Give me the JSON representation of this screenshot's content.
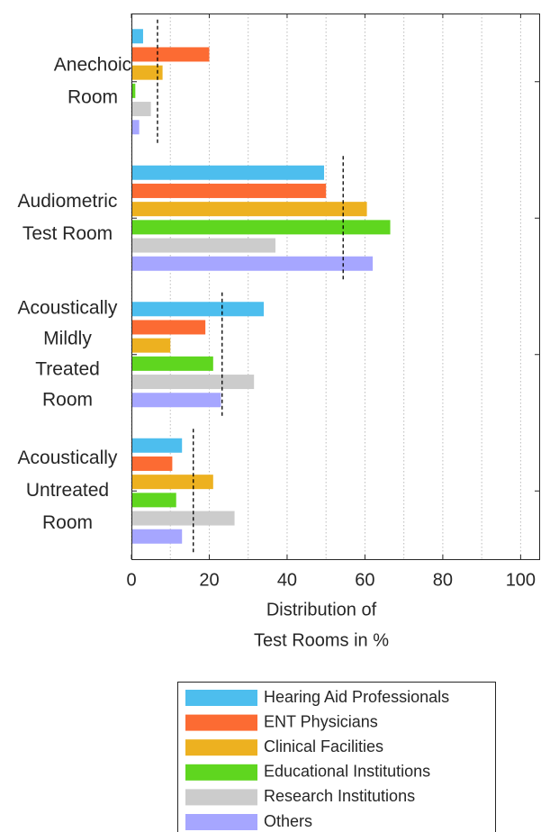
{
  "chart_data": {
    "type": "barh",
    "categories": [
      [
        "Anechoic",
        "Room"
      ],
      [
        "Audiometric",
        "Test Room"
      ],
      [
        "Acoustically",
        "Mildly",
        "Treated",
        "Room"
      ],
      [
        "Acoustically",
        "Untreated",
        "Room"
      ]
    ],
    "series": [
      {
        "name": "Hearing Aid Professionals",
        "color": "#4dbeee",
        "values": [
          3,
          49.5,
          34,
          13
        ]
      },
      {
        "name": "ENT Physicians",
        "color": "#fc6b33",
        "values": [
          20,
          50,
          19,
          10.5
        ]
      },
      {
        "name": "Clinical Facilities",
        "color": "#edb120",
        "values": [
          8,
          60.5,
          10,
          21
        ]
      },
      {
        "name": "Educational Institutions",
        "color": "#5fd61f",
        "values": [
          1,
          66.5,
          21,
          11.5
        ]
      },
      {
        "name": "Research Institutions",
        "color": "#cccccc",
        "values": [
          5,
          37,
          31.5,
          26.5
        ]
      },
      {
        "name": "Others",
        "color": "#a6a6ff",
        "values": [
          2,
          62,
          23,
          13
        ]
      }
    ],
    "averages": [
      6.7,
      54.4,
      23.3,
      15.9
    ],
    "xlabel": [
      "Distribution of",
      "Test Rooms in %"
    ],
    "xlim": [
      0,
      105
    ],
    "xticks": [
      0,
      20,
      40,
      60,
      80,
      100
    ],
    "xminorticks": [
      10,
      30,
      50,
      70,
      90
    ],
    "grid": true
  }
}
